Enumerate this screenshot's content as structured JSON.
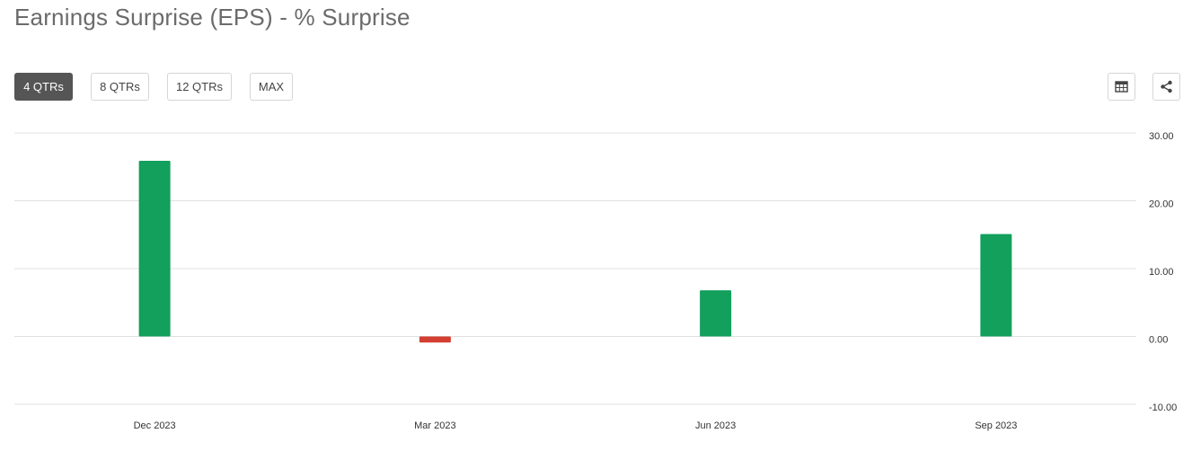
{
  "title": "Earnings Surprise (EPS) - % Surprise",
  "range_buttons": [
    {
      "label": "4 QTRs",
      "active": true
    },
    {
      "label": "8 QTRs",
      "active": false
    },
    {
      "label": "12 QTRs",
      "active": false
    },
    {
      "label": "MAX",
      "active": false
    }
  ],
  "toolbar": {
    "table_icon": "table-icon",
    "share_icon": "share-icon"
  },
  "colors": {
    "positive": "#12a05c",
    "negative": "#d23f31",
    "grid": "#e0e0e0",
    "axis_text": "#333333"
  },
  "chart_data": {
    "type": "bar",
    "categories": [
      "Dec 2023",
      "Mar 2023",
      "Jun 2023",
      "Sep 2023"
    ],
    "values": [
      25.9,
      -0.9,
      6.8,
      15.1
    ],
    "ylim": [
      -10,
      30
    ],
    "yticks": [
      "30.00",
      "20.00",
      "10.00",
      "0.00",
      "-10.00"
    ],
    "ytick_values": [
      30,
      20,
      10,
      0,
      -10
    ],
    "grid": true,
    "y_axis_side": "right"
  }
}
